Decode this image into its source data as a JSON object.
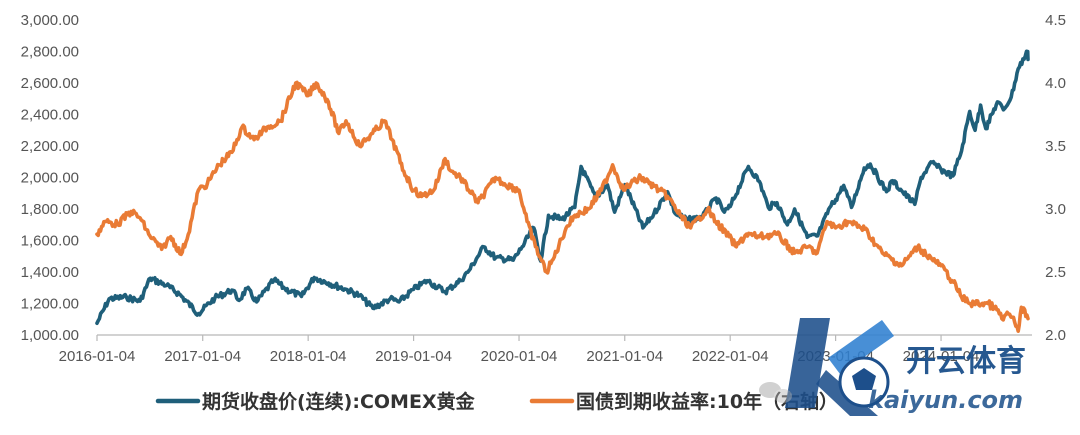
{
  "chart_data": {
    "type": "line",
    "title": "",
    "xlabel": "",
    "ylabel": "",
    "x_ticks": [
      "2016-01-04",
      "2017-01-04",
      "2018-01-04",
      "2019-01-04",
      "2020-01-04",
      "2021-01-04",
      "2022-01-04",
      "2023-01-04",
      "2024-01-04"
    ],
    "xlim": [
      "2016-01-04",
      "2024-10-31"
    ],
    "y_left": {
      "min": 1000,
      "max": 3000,
      "ticks": [
        "1,000.00",
        "1,200.00",
        "1,400.00",
        "1,600.00",
        "1,800.00",
        "2,000.00",
        "2,200.00",
        "2,400.00",
        "2,600.00",
        "2,800.00",
        "3,000.00"
      ]
    },
    "y_right": {
      "min": 2.0,
      "max": 4.5,
      "ticks": [
        "2.0",
        "2.5",
        "3.0",
        "3.5",
        "4.0",
        "4.5"
      ]
    },
    "grid": false,
    "legend_position": "bottom",
    "series": [
      {
        "name": "期货收盘价(连续):COMEX黄金",
        "axis": "left",
        "color": "#1f5f7a",
        "points": [
          [
            "2016-01-04",
            1075
          ],
          [
            "2016-02-15",
            1230
          ],
          [
            "2016-04-15",
            1240
          ],
          [
            "2016-06-01",
            1215
          ],
          [
            "2016-07-06",
            1360
          ],
          [
            "2016-09-01",
            1315
          ],
          [
            "2016-10-15",
            1260
          ],
          [
            "2016-12-20",
            1135
          ],
          [
            "2017-02-15",
            1235
          ],
          [
            "2017-04-15",
            1285
          ],
          [
            "2017-05-10",
            1220
          ],
          [
            "2017-06-06",
            1295
          ],
          [
            "2017-07-10",
            1210
          ],
          [
            "2017-09-08",
            1350
          ],
          [
            "2017-10-15",
            1295
          ],
          [
            "2017-12-12",
            1245
          ],
          [
            "2018-01-25",
            1365
          ],
          [
            "2018-03-15",
            1330
          ],
          [
            "2018-05-15",
            1290
          ],
          [
            "2018-07-01",
            1250
          ],
          [
            "2018-08-16",
            1170
          ],
          [
            "2018-10-15",
            1230
          ],
          [
            "2018-11-15",
            1210
          ],
          [
            "2019-01-04",
            1290
          ],
          [
            "2019-02-20",
            1345
          ],
          [
            "2019-04-23",
            1275
          ],
          [
            "2019-06-15",
            1345
          ],
          [
            "2019-07-15",
            1410
          ],
          [
            "2019-09-04",
            1560
          ],
          [
            "2019-10-15",
            1490
          ],
          [
            "2019-12-15",
            1475
          ],
          [
            "2020-01-15",
            1560
          ],
          [
            "2020-02-24",
            1680
          ],
          [
            "2020-03-19",
            1470
          ],
          [
            "2020-04-15",
            1760
          ],
          [
            "2020-06-01",
            1735
          ],
          [
            "2020-07-15",
            1810
          ],
          [
            "2020-08-06",
            2070
          ],
          [
            "2020-09-25",
            1870
          ],
          [
            "2020-11-05",
            1955
          ],
          [
            "2020-11-30",
            1780
          ],
          [
            "2021-01-05",
            1955
          ],
          [
            "2021-03-08",
            1680
          ],
          [
            "2021-04-15",
            1770
          ],
          [
            "2021-06-01",
            1910
          ],
          [
            "2021-06-28",
            1770
          ],
          [
            "2021-08-09",
            1730
          ],
          [
            "2021-09-30",
            1750
          ],
          [
            "2021-11-16",
            1870
          ],
          [
            "2021-12-15",
            1780
          ],
          [
            "2022-01-04",
            1815
          ],
          [
            "2022-03-08",
            2070
          ],
          [
            "2022-04-15",
            1975
          ],
          [
            "2022-05-16",
            1810
          ],
          [
            "2022-06-15",
            1840
          ],
          [
            "2022-07-21",
            1700
          ],
          [
            "2022-08-15",
            1800
          ],
          [
            "2022-09-28",
            1620
          ],
          [
            "2022-11-03",
            1630
          ],
          [
            "2022-12-15",
            1810
          ],
          [
            "2023-01-04",
            1860
          ],
          [
            "2023-02-01",
            1950
          ],
          [
            "2023-02-28",
            1810
          ],
          [
            "2023-04-13",
            2060
          ],
          [
            "2023-05-04",
            2085
          ],
          [
            "2023-06-29",
            1910
          ],
          [
            "2023-07-20",
            1980
          ],
          [
            "2023-08-21",
            1915
          ],
          [
            "2023-10-05",
            1830
          ],
          [
            "2023-10-27",
            2000
          ],
          [
            "2023-12-04",
            2095
          ],
          [
            "2024-01-04",
            2050
          ],
          [
            "2024-02-14",
            2010
          ],
          [
            "2024-03-15",
            2170
          ],
          [
            "2024-04-12",
            2420
          ],
          [
            "2024-05-01",
            2300
          ],
          [
            "2024-05-20",
            2460
          ],
          [
            "2024-06-07",
            2310
          ],
          [
            "2024-07-17",
            2480
          ],
          [
            "2024-08-07",
            2430
          ],
          [
            "2024-09-03",
            2510
          ],
          [
            "2024-09-27",
            2690
          ],
          [
            "2024-10-30",
            2800
          ],
          [
            "2024-10-31",
            2750
          ]
        ]
      },
      {
        "name": "国债到期收益率:10年（右轴）",
        "axis": "right",
        "color": "#e97b35",
        "points": [
          [
            "2016-01-04",
            2.8
          ],
          [
            "2016-02-01",
            2.9
          ],
          [
            "2016-03-15",
            2.88
          ],
          [
            "2016-05-01",
            2.98
          ],
          [
            "2016-06-01",
            2.93
          ],
          [
            "2016-07-01",
            2.8
          ],
          [
            "2016-08-15",
            2.68
          ],
          [
            "2016-09-15",
            2.78
          ],
          [
            "2016-10-21",
            2.64
          ],
          [
            "2016-11-15",
            2.8
          ],
          [
            "2016-12-20",
            3.15
          ],
          [
            "2017-01-20",
            3.2
          ],
          [
            "2017-03-01",
            3.35
          ],
          [
            "2017-04-15",
            3.45
          ],
          [
            "2017-05-20",
            3.65
          ],
          [
            "2017-07-01",
            3.55
          ],
          [
            "2017-08-15",
            3.65
          ],
          [
            "2017-10-01",
            3.7
          ],
          [
            "2017-11-22",
            4.0
          ],
          [
            "2018-01-04",
            3.9
          ],
          [
            "2018-02-01",
            4.0
          ],
          [
            "2018-03-15",
            3.85
          ],
          [
            "2018-04-20",
            3.6
          ],
          [
            "2018-05-15",
            3.7
          ],
          [
            "2018-07-01",
            3.5
          ],
          [
            "2018-08-15",
            3.6
          ],
          [
            "2018-09-25",
            3.7
          ],
          [
            "2018-10-22",
            3.55
          ],
          [
            "2018-12-01",
            3.3
          ],
          [
            "2019-01-04",
            3.15
          ],
          [
            "2019-02-01",
            3.1
          ],
          [
            "2019-03-15",
            3.15
          ],
          [
            "2019-04-23",
            3.4
          ],
          [
            "2019-05-15",
            3.3
          ],
          [
            "2019-06-15",
            3.25
          ],
          [
            "2019-08-15",
            3.05
          ],
          [
            "2019-10-15",
            3.25
          ],
          [
            "2019-11-15",
            3.2
          ],
          [
            "2020-01-04",
            3.15
          ],
          [
            "2020-02-01",
            2.9
          ],
          [
            "2020-03-01",
            2.7
          ],
          [
            "2020-04-08",
            2.5
          ],
          [
            "2020-05-01",
            2.6
          ],
          [
            "2020-06-15",
            2.85
          ],
          [
            "2020-07-15",
            2.95
          ],
          [
            "2020-09-01",
            3.0
          ],
          [
            "2020-10-15",
            3.15
          ],
          [
            "2020-11-23",
            3.35
          ],
          [
            "2020-12-31",
            3.15
          ],
          [
            "2021-01-25",
            3.2
          ],
          [
            "2021-03-01",
            3.25
          ],
          [
            "2021-04-15",
            3.18
          ],
          [
            "2021-06-01",
            3.1
          ],
          [
            "2021-07-15",
            2.95
          ],
          [
            "2021-08-20",
            2.85
          ],
          [
            "2021-10-18",
            3.0
          ],
          [
            "2021-11-15",
            2.9
          ],
          [
            "2021-12-31",
            2.78
          ],
          [
            "2022-01-25",
            2.7
          ],
          [
            "2022-03-01",
            2.8
          ],
          [
            "2022-04-15",
            2.78
          ],
          [
            "2022-06-15",
            2.8
          ],
          [
            "2022-08-15",
            2.65
          ],
          [
            "2022-10-01",
            2.7
          ],
          [
            "2022-11-01",
            2.65
          ],
          [
            "2022-12-05",
            2.9
          ],
          [
            "2023-01-04",
            2.85
          ],
          [
            "2023-02-15",
            2.9
          ],
          [
            "2023-04-15",
            2.84
          ],
          [
            "2023-06-15",
            2.65
          ],
          [
            "2023-08-20",
            2.55
          ],
          [
            "2023-10-15",
            2.7
          ],
          [
            "2023-12-15",
            2.58
          ],
          [
            "2024-01-04",
            2.55
          ],
          [
            "2024-02-15",
            2.42
          ],
          [
            "2024-03-15",
            2.3
          ],
          [
            "2024-04-15",
            2.25
          ],
          [
            "2024-06-15",
            2.25
          ],
          [
            "2024-07-15",
            2.2
          ],
          [
            "2024-08-06",
            2.12
          ],
          [
            "2024-08-20",
            2.18
          ],
          [
            "2024-09-15",
            2.1
          ],
          [
            "2024-09-27",
            2.03
          ],
          [
            "2024-10-08",
            2.22
          ],
          [
            "2024-10-31",
            2.13
          ]
        ]
      }
    ]
  },
  "watermark": {
    "brand": "开云体育",
    "domain": "kaiyun.com"
  }
}
